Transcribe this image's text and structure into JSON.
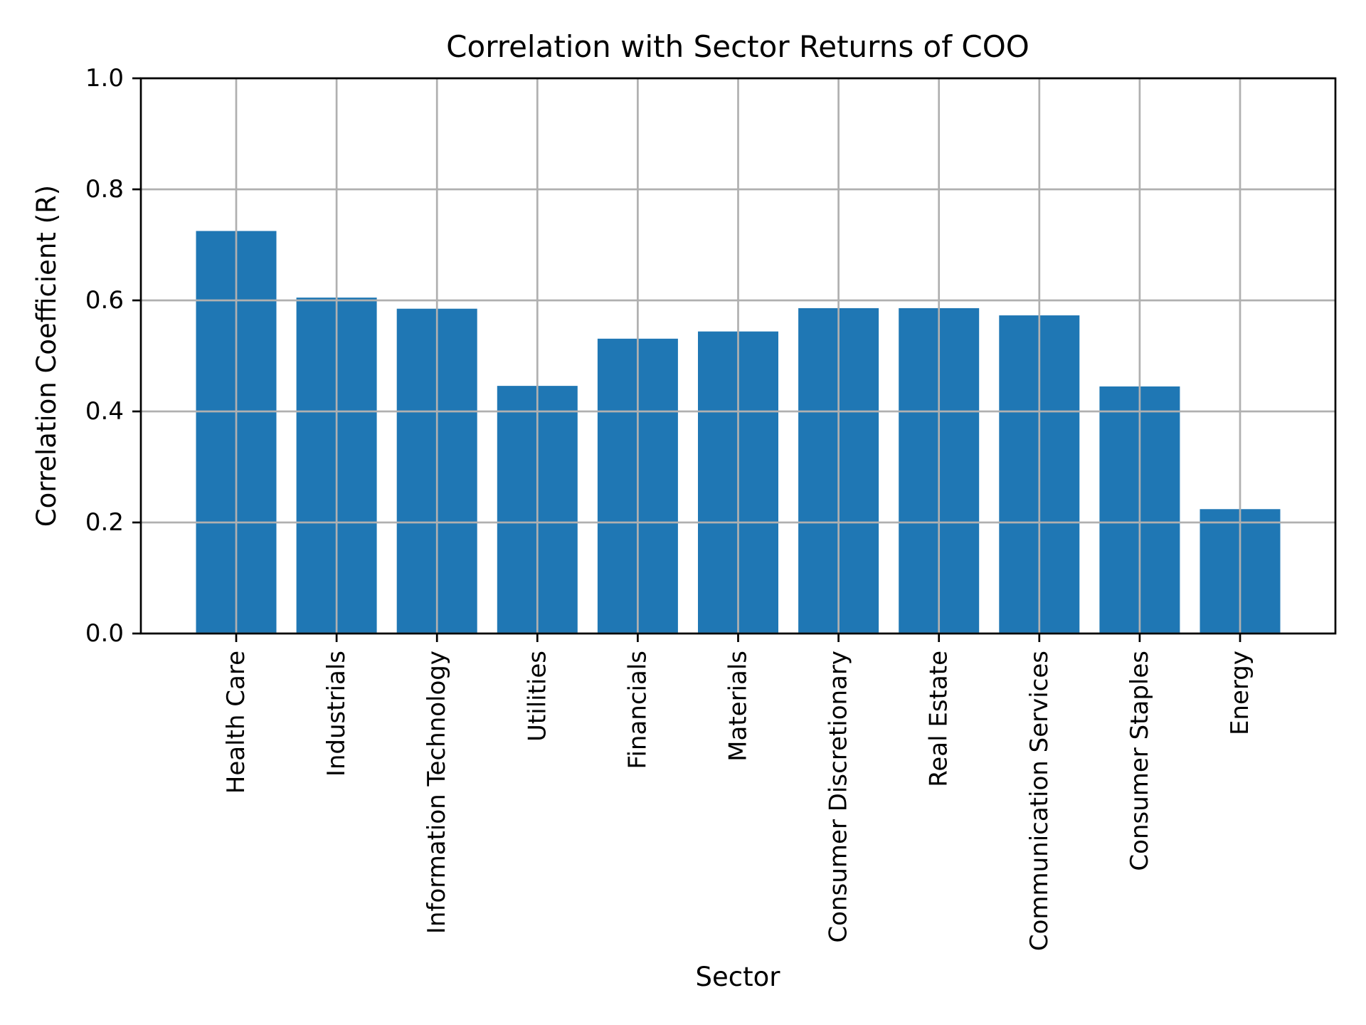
{
  "chart_data": {
    "type": "bar",
    "title": "Correlation with Sector Returns of COO",
    "xlabel": "Sector",
    "ylabel": "Correlation Coefficient (R)",
    "categories": [
      "Health Care",
      "Industrials",
      "Information Technology",
      "Utilities",
      "Financials",
      "Materials",
      "Consumer Discretionary",
      "Real Estate",
      "Communication Services",
      "Consumer Staples",
      "Energy"
    ],
    "values": [
      0.725,
      0.605,
      0.585,
      0.446,
      0.531,
      0.544,
      0.586,
      0.586,
      0.573,
      0.445,
      0.224
    ],
    "ylim": [
      0.0,
      1.0
    ],
    "yticks": [
      0.0,
      0.2,
      0.4,
      0.6,
      0.8,
      1.0
    ],
    "ytick_labels": [
      "0.0",
      "0.2",
      "0.4",
      "0.6",
      "0.8",
      "1.0"
    ],
    "grid": true,
    "grid_over_bars": true,
    "legend": "none",
    "bar_color": "#1f77b4",
    "grid_color": "#b0b0b0",
    "axis_color": "#000000",
    "background_color": "#ffffff"
  }
}
